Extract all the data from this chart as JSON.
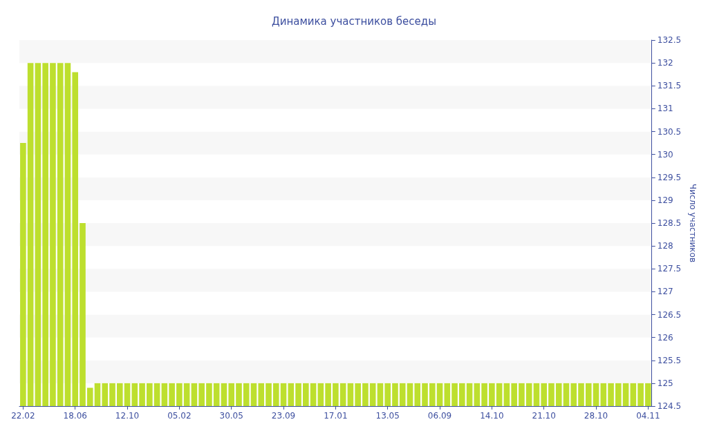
{
  "chart_data": {
    "type": "bar",
    "title": "Динамика участников беседы",
    "ylabel": "Число участников",
    "categories": [
      "22.02",
      null,
      null,
      null,
      null,
      null,
      null,
      "18.06",
      null,
      null,
      null,
      null,
      null,
      null,
      "12.10",
      null,
      null,
      null,
      null,
      null,
      null,
      "05.02",
      null,
      null,
      null,
      null,
      null,
      null,
      "30.05",
      null,
      null,
      null,
      null,
      null,
      null,
      "23.09",
      null,
      null,
      null,
      null,
      null,
      null,
      "17.01",
      null,
      null,
      null,
      null,
      null,
      null,
      "13.05",
      null,
      null,
      null,
      null,
      null,
      null,
      "06.09",
      null,
      null,
      null,
      null,
      null,
      null,
      "14.10",
      null,
      null,
      null,
      null,
      null,
      null,
      "21.10",
      null,
      null,
      null,
      null,
      null,
      null,
      "28.10",
      null,
      null,
      null,
      null,
      null,
      null,
      "04.11"
    ],
    "values": [
      130.25,
      132,
      132,
      132,
      132,
      132,
      132,
      131.8,
      128.5,
      124.9,
      125,
      125,
      125,
      125,
      125,
      125,
      125,
      125,
      125,
      125,
      125,
      125,
      125,
      125,
      125,
      125,
      125,
      125,
      125,
      125,
      125,
      125,
      125,
      125,
      125,
      125,
      125,
      125,
      125,
      125,
      125,
      125,
      125,
      125,
      125,
      125,
      125,
      125,
      125,
      125,
      125,
      125,
      125,
      125,
      125,
      125,
      125,
      125,
      125,
      125,
      125,
      125,
      125,
      125,
      125,
      125,
      125,
      125,
      125,
      125,
      125,
      125,
      125,
      125,
      125,
      125,
      125,
      125,
      125,
      125,
      125,
      125,
      125,
      125,
      125
    ],
    "color": "#bddf2e",
    "ylim": [
      124.5,
      132.5
    ],
    "yticks": [
      124.5,
      125,
      125.5,
      126,
      126.5,
      127,
      127.5,
      128,
      128.5,
      129,
      129.5,
      130,
      130.5,
      131,
      131.5,
      132,
      132.5
    ],
    "grid": false
  }
}
